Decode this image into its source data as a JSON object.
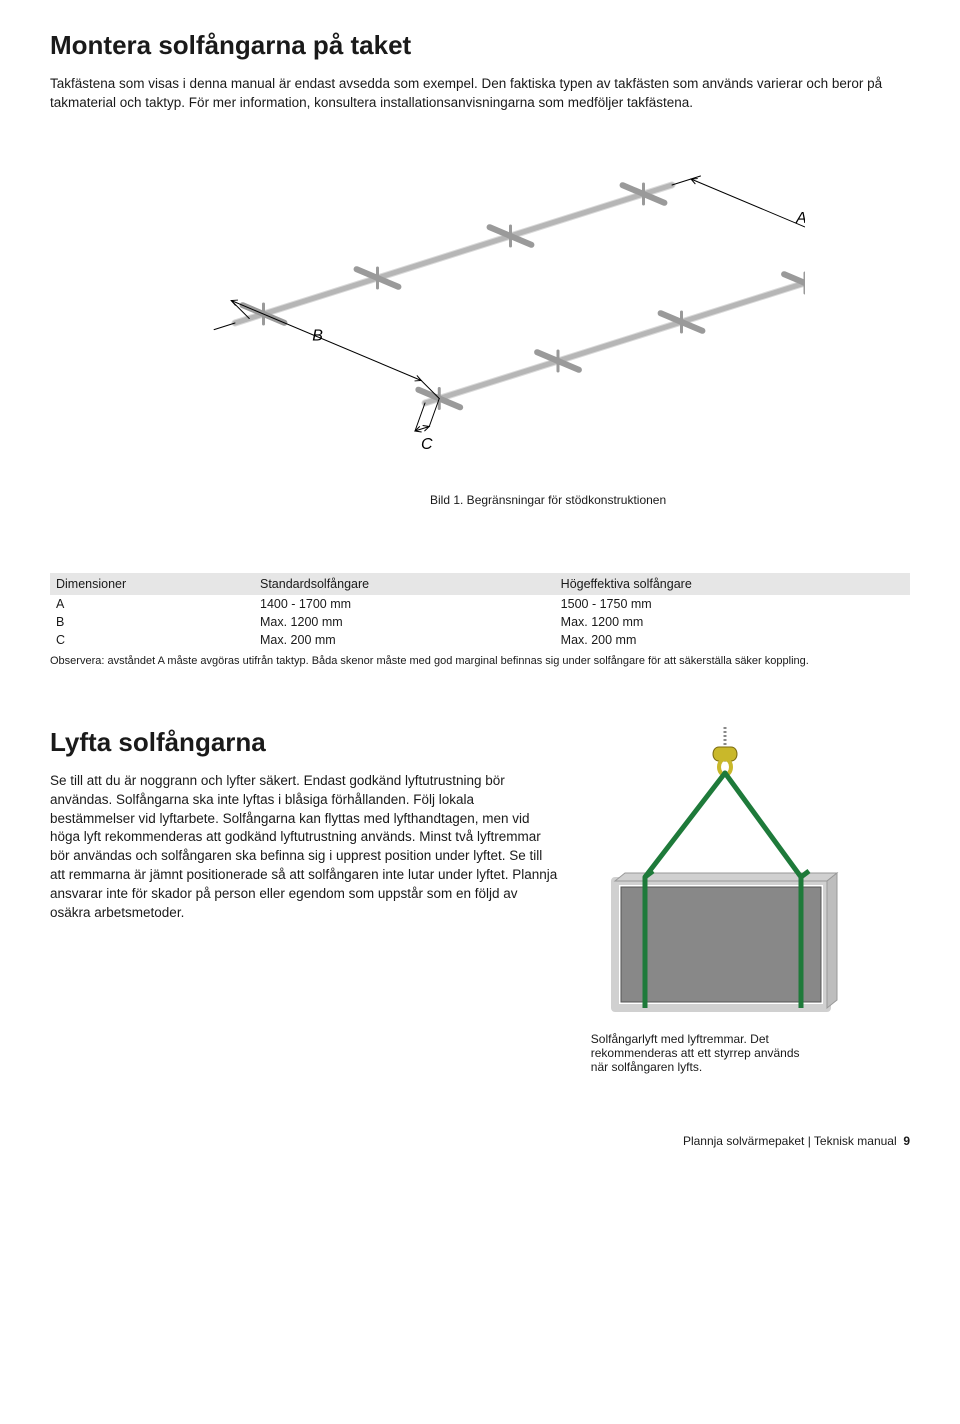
{
  "section1": {
    "title": "Montera solfångarna på taket",
    "intro": "Takfästena som visas i denna manual är endast avsedda som exempel. Den faktiska typen av takfästen som används varierar och beror på takmaterial och taktyp. För mer information, konsultera installationsanvisningarna som medföljer takfästena.",
    "figure": {
      "labels": {
        "A": "A",
        "B": "B",
        "C": "C"
      },
      "caption": "Bild 1. Begränsningar för stödkonstruktionen",
      "rail_color": "#b6b6b6",
      "rail_hilite": "#d9d9d9",
      "bracket_color": "#9a9a9a"
    },
    "table": {
      "headers": [
        "Dimensioner",
        "Standardsolfångare",
        "Högeffektiva solfångare"
      ],
      "rows": [
        [
          "A",
          "1400 - 1700 mm",
          "1500 - 1750 mm"
        ],
        [
          "B",
          "Max. 1200 mm",
          "Max. 1200 mm"
        ],
        [
          "C",
          "Max. 200 mm",
          "Max. 200 mm"
        ]
      ],
      "note": "Observera: avståndet A måste avgöras utifrån taktyp. Båda skenor måste med god marginal befinnas sig under solfångare för att säkerställa säker koppling."
    }
  },
  "section2": {
    "title": "Lyfta solfångarna",
    "body": "Se till att du är noggrann och lyfter säkert. Endast godkänd lyftutrustning bör användas. Solfångarna ska inte lyftas i blåsiga förhållanden. Följ lokala bestämmelser vid lyftarbete. Solfångarna kan flyttas med lyfthandtagen, men vid höga lyft rekommenderas att godkänd lyftutrustning används. Minst två lyftremmar bör användas och solfångaren ska befinna sig i upprest position under lyftet. Se till att remmarna är jämnt positionerade så att solfångaren inte lutar under lyftet. Plannja ansvarar inte för skador på person eller egendom som uppstår som en följd av osäkra arbetsmetoder.",
    "lift_figure": {
      "panel_fill": "#888888",
      "frame_fill": "#d0d0d0",
      "strap_color": "#1e7a3a",
      "hook_color": "#c9b82a",
      "chain_color": "#888888"
    },
    "lift_caption": "Solfångarlyft med lyftremmar. Det rekommenderas att ett styrrep används när solfångaren lyfts."
  },
  "footer": {
    "text": "Plannja solvärmepaket | Teknisk manual",
    "page": "9"
  }
}
